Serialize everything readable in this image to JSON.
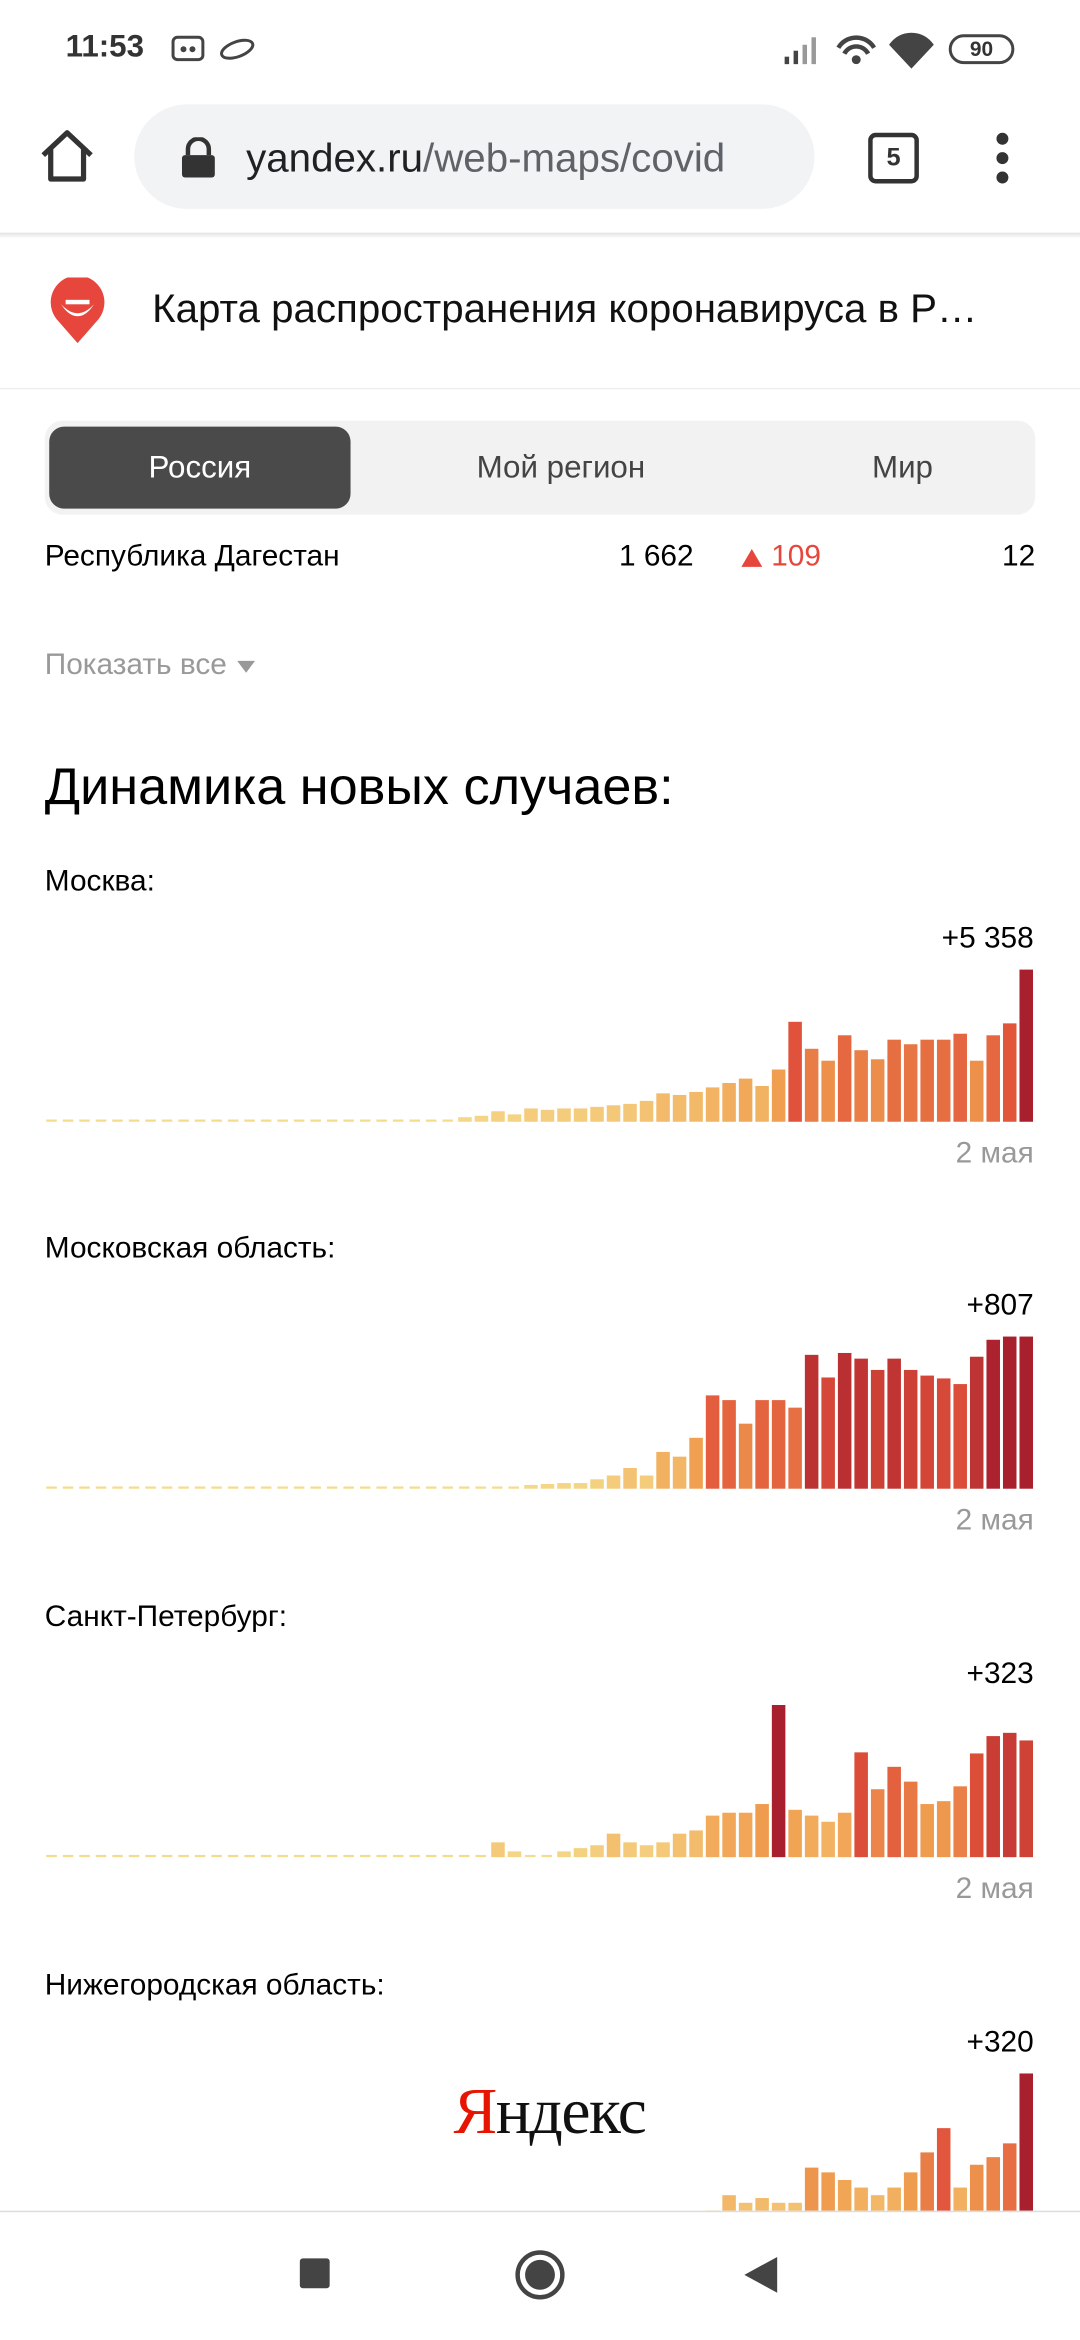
{
  "status_bar": {
    "time": "11:53",
    "battery": "90"
  },
  "browser": {
    "url_domain": "yandex.ru",
    "url_path": "/web-maps/covid",
    "tab_count": "5"
  },
  "header": {
    "title": "Карта распространения коронавируса в Р…"
  },
  "tabs": [
    "Россия",
    "Мой регион",
    "Мир"
  ],
  "table": {
    "rows": [
      [
        "Республика Дагестан",
        "1 662",
        "109",
        "12"
      ]
    ]
  },
  "show_all": "Показать все",
  "section_title": "Динамика новых случаев:",
  "watermark": {
    "first": "Я",
    "rest": "ндекс"
  },
  "chart_data": [
    {
      "type": "bar",
      "title": "Москва:",
      "categories": [
        null,
        null,
        null,
        null,
        null,
        null,
        null,
        null,
        null,
        null,
        null,
        null,
        null,
        null,
        null,
        null,
        null,
        null,
        null,
        null,
        null,
        null,
        null,
        null,
        null,
        null,
        null,
        null,
        null,
        null,
        null,
        null,
        null,
        null,
        null,
        null,
        null,
        null,
        null,
        null,
        null,
        null,
        null,
        null,
        null,
        null,
        null,
        null,
        null,
        null,
        null,
        null,
        null,
        null,
        null,
        null,
        null,
        null,
        null,
        "2 мая"
      ],
      "values": [
        0,
        0,
        0,
        0,
        0,
        0,
        0,
        0,
        0,
        0,
        0,
        0,
        0,
        0,
        0,
        0,
        0,
        0,
        0,
        0,
        0,
        0,
        20,
        30,
        100,
        160,
        210,
        370,
        260,
        470,
        420,
        470,
        470,
        525,
        580,
        630,
        735,
        1000,
        945,
        1050,
        1210,
        1365,
        1520,
        1260,
        1840,
        3520,
        2570,
        2150,
        3045,
        2520,
        2200,
        2890,
        2730,
        2890,
        2890,
        3100,
        2150,
        3045,
        3465,
        5358
      ],
      "value_labels": [
        null,
        null,
        null,
        null,
        null,
        null,
        null,
        null,
        null,
        null,
        null,
        null,
        null,
        null,
        null,
        null,
        null,
        null,
        null,
        null,
        null,
        null,
        null,
        null,
        null,
        null,
        null,
        null,
        null,
        null,
        null,
        null,
        null,
        null,
        null,
        null,
        null,
        null,
        null,
        null,
        null,
        null,
        null,
        null,
        null,
        null,
        null,
        null,
        null,
        null,
        null,
        null,
        null,
        null,
        null,
        null,
        null,
        null,
        null,
        "+5 358"
      ]
    },
    {
      "type": "bar",
      "title": "Московская область:",
      "categories": [
        null,
        null,
        null,
        null,
        null,
        null,
        null,
        null,
        null,
        null,
        null,
        null,
        null,
        null,
        null,
        null,
        null,
        null,
        null,
        null,
        null,
        null,
        null,
        null,
        null,
        null,
        null,
        null,
        null,
        null,
        null,
        null,
        null,
        null,
        null,
        null,
        null,
        null,
        null,
        null,
        null,
        null,
        null,
        null,
        null,
        null,
        null,
        null,
        null,
        null,
        null,
        null,
        null,
        null,
        null,
        null,
        null,
        null,
        null,
        "2 мая"
      ],
      "values": [
        0,
        0,
        0,
        0,
        0,
        0,
        0,
        0,
        0,
        0,
        0,
        0,
        0,
        0,
        0,
        0,
        0,
        0,
        0,
        0,
        0,
        0,
        0,
        0,
        0,
        0,
        15,
        15,
        0,
        20,
        25,
        30,
        30,
        50,
        70,
        110,
        70,
        195,
        170,
        270,
        495,
        470,
        345,
        470,
        470,
        430,
        710,
        590,
        720,
        690,
        630,
        690,
        630,
        600,
        585,
        555,
        700,
        790,
        807,
        807
      ],
      "value_labels": [
        null,
        null,
        null,
        null,
        null,
        null,
        null,
        null,
        null,
        null,
        null,
        null,
        null,
        null,
        null,
        null,
        null,
        null,
        null,
        null,
        null,
        null,
        null,
        null,
        null,
        null,
        null,
        null,
        null,
        null,
        null,
        null,
        null,
        null,
        null,
        null,
        null,
        null,
        null,
        null,
        null,
        null,
        null,
        null,
        null,
        null,
        null,
        null,
        null,
        null,
        null,
        null,
        null,
        null,
        null,
        null,
        null,
        null,
        null,
        "+807"
      ]
    },
    {
      "type": "bar",
      "title": "Санкт-Петербург:",
      "categories": [
        null,
        null,
        null,
        null,
        null,
        null,
        null,
        null,
        null,
        null,
        null,
        null,
        null,
        null,
        null,
        null,
        null,
        null,
        null,
        null,
        null,
        null,
        null,
        null,
        null,
        null,
        null,
        null,
        null,
        null,
        null,
        null,
        null,
        null,
        null,
        null,
        null,
        null,
        null,
        null,
        null,
        null,
        null,
        null,
        null,
        null,
        null,
        null,
        null,
        null,
        null,
        null,
        null,
        null,
        null,
        null,
        null,
        null,
        null,
        "2 мая"
      ],
      "values": [
        0,
        0,
        0,
        0,
        0,
        0,
        0,
        0,
        0,
        0,
        0,
        0,
        0,
        0,
        0,
        0,
        0,
        0,
        0,
        0,
        0,
        0,
        0,
        0,
        0,
        0,
        0,
        41,
        16,
        8,
        8,
        16,
        25,
        33,
        65,
        41,
        33,
        41,
        65,
        74,
        115,
        123,
        123,
        147,
        421,
        131,
        115,
        98,
        123,
        290,
        188,
        250,
        209,
        147,
        155,
        196,
        287,
        335,
        344,
        323
      ],
      "value_labels": [
        null,
        null,
        null,
        null,
        null,
        null,
        null,
        null,
        null,
        null,
        null,
        null,
        null,
        null,
        null,
        null,
        null,
        null,
        null,
        null,
        null,
        null,
        null,
        null,
        null,
        null,
        null,
        null,
        null,
        null,
        null,
        null,
        null,
        null,
        null,
        null,
        null,
        null,
        null,
        null,
        null,
        null,
        null,
        null,
        null,
        null,
        null,
        null,
        null,
        null,
        null,
        null,
        null,
        null,
        null,
        null,
        null,
        null,
        null,
        "+323"
      ]
    },
    {
      "type": "bar",
      "title": "Нижегородская область:",
      "values": [
        0,
        0,
        0,
        0,
        0,
        0,
        0,
        0,
        0,
        0,
        0,
        0,
        0,
        0,
        0,
        0,
        0,
        0,
        0,
        0,
        0,
        0,
        0,
        0,
        0,
        0,
        0,
        0,
        0,
        0,
        0,
        0,
        0,
        0,
        0,
        0,
        0,
        0,
        0,
        22,
        32,
        64,
        48,
        58,
        48,
        48,
        122,
        112,
        96,
        80,
        64,
        80,
        112,
        154,
        205,
        80,
        128,
        144,
        173,
        320
      ],
      "value_labels": [
        null,
        null,
        null,
        null,
        null,
        null,
        null,
        null,
        null,
        null,
        null,
        null,
        null,
        null,
        null,
        null,
        null,
        null,
        null,
        null,
        null,
        null,
        null,
        null,
        null,
        null,
        null,
        null,
        null,
        null,
        null,
        null,
        null,
        null,
        null,
        null,
        null,
        null,
        null,
        null,
        null,
        null,
        null,
        null,
        null,
        null,
        null,
        null,
        null,
        null,
        null,
        null,
        null,
        null,
        null,
        null,
        null,
        null,
        null,
        "+320"
      ]
    }
  ]
}
